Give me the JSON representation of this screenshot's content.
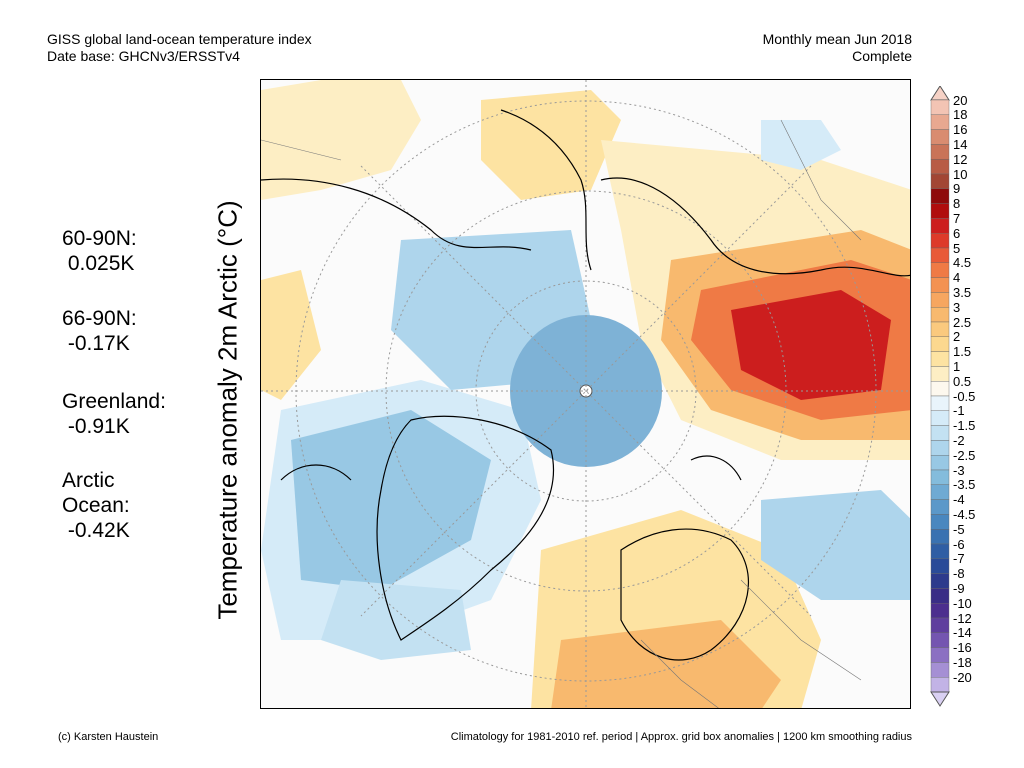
{
  "header": {
    "title_line1": "GISS global land-ocean temperature index",
    "title_line2": "Date base: GHCNv3/ERSSTv4",
    "period_line1": "Monthly mean Jun 2018",
    "period_line2": "Complete"
  },
  "y_axis_label": "Temperature anomaly 2m Arctic (°C)",
  "stats": [
    {
      "label": "60-90N:",
      "value": " 0.025K"
    },
    {
      "label": "66-90N:",
      "value": " -0.17K"
    },
    {
      "label": "Greenland:",
      "value": " -0.91K"
    },
    {
      "label": "Arctic\nOcean:",
      "value": " -0.42K"
    }
  ],
  "colorbar": {
    "labels": [
      "20",
      "18",
      "16",
      "14",
      "12",
      "10",
      "9",
      "8",
      "7",
      "6",
      "5",
      "4.5",
      "4",
      "3.5",
      "3",
      "2.5",
      "2",
      "1.5",
      "1",
      "0.5",
      "-0.5",
      "-1",
      "-1.5",
      "-2",
      "-2.5",
      "-3",
      "-3.5",
      "-4",
      "-4.5",
      "-5",
      "-6",
      "-7",
      "-8",
      "-9",
      "-10",
      "-12",
      "-14",
      "-16",
      "-18",
      "-20"
    ],
    "colors": [
      "#f3c4b4",
      "#e8a890",
      "#d98c70",
      "#c97358",
      "#b85c45",
      "#a24634",
      "#8e0a0a",
      "#b00d0d",
      "#cc1e1e",
      "#dd3a2a",
      "#e85a38",
      "#ef7a45",
      "#f39252",
      "#f6a660",
      "#f8b96e",
      "#fac97e",
      "#fcd88f",
      "#fde3a2",
      "#fdeec4",
      "#fdf8ee",
      "#e9f4fb",
      "#d5ebf8",
      "#c3e1f2",
      "#aed5ec",
      "#98c8e4",
      "#84bcdc",
      "#6faad3",
      "#5b98c9",
      "#4987bf",
      "#3a72b1",
      "#2f5ea4",
      "#2a4b98",
      "#2d3a8c",
      "#3a2d86",
      "#4c2e8e",
      "#5f3e9e",
      "#7455b0",
      "#8b70c2",
      "#a58fd4",
      "#c2b3e6"
    ],
    "top_cap": "#f6d2c6",
    "bottom_cap": "#d9d0f2"
  },
  "footer": {
    "left": "(c) Karsten Haustein",
    "right": "Climatology for 1981-2010 ref. period | Approx. grid box anomalies | 1200 km smoothing radius"
  }
}
